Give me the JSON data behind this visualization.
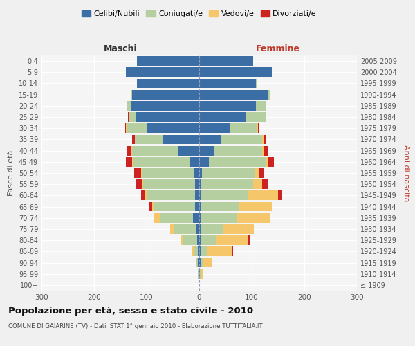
{
  "age_groups": [
    "100+",
    "95-99",
    "90-94",
    "85-89",
    "80-84",
    "75-79",
    "70-74",
    "65-69",
    "60-64",
    "55-59",
    "50-54",
    "45-49",
    "40-44",
    "35-39",
    "30-34",
    "25-29",
    "20-24",
    "15-19",
    "10-14",
    "5-9",
    "0-4"
  ],
  "birth_years": [
    "≤ 1909",
    "1910-1914",
    "1915-1919",
    "1920-1924",
    "1925-1929",
    "1930-1934",
    "1935-1939",
    "1940-1944",
    "1945-1949",
    "1950-1954",
    "1955-1959",
    "1960-1964",
    "1965-1969",
    "1970-1974",
    "1975-1979",
    "1980-1984",
    "1985-1989",
    "1990-1994",
    "1995-1999",
    "2000-2004",
    "2005-2009"
  ],
  "maschi": {
    "celibi": [
      0,
      1,
      2,
      3,
      4,
      6,
      12,
      8,
      8,
      8,
      10,
      18,
      40,
      70,
      100,
      120,
      130,
      128,
      118,
      140,
      118
    ],
    "coniugati": [
      0,
      1,
      3,
      8,
      28,
      42,
      62,
      78,
      92,
      98,
      98,
      108,
      88,
      52,
      38,
      14,
      7,
      2,
      0,
      0,
      0
    ],
    "vedovi": [
      0,
      0,
      1,
      2,
      4,
      7,
      13,
      4,
      2,
      2,
      2,
      2,
      2,
      1,
      1,
      0,
      0,
      0,
      0,
      0,
      0
    ],
    "divorziati": [
      0,
      0,
      0,
      0,
      0,
      0,
      0,
      5,
      8,
      12,
      14,
      12,
      8,
      4,
      2,
      1,
      0,
      0,
      0,
      0,
      0
    ]
  },
  "femmine": {
    "nubili": [
      0,
      1,
      2,
      2,
      3,
      4,
      4,
      4,
      4,
      4,
      5,
      18,
      28,
      42,
      58,
      88,
      108,
      132,
      108,
      138,
      103
    ],
    "coniugate": [
      0,
      1,
      4,
      12,
      28,
      42,
      68,
      72,
      88,
      98,
      102,
      108,
      92,
      78,
      52,
      38,
      18,
      4,
      2,
      0,
      0
    ],
    "vedove": [
      0,
      4,
      18,
      48,
      62,
      58,
      62,
      62,
      58,
      18,
      8,
      6,
      4,
      2,
      2,
      1,
      0,
      0,
      0,
      0,
      0
    ],
    "divorziate": [
      0,
      0,
      0,
      2,
      4,
      0,
      0,
      0,
      7,
      10,
      8,
      10,
      7,
      4,
      2,
      1,
      0,
      0,
      0,
      0,
      0
    ]
  },
  "colors": {
    "celibi": "#3a6ea5",
    "coniugati": "#b5cfa0",
    "vedovi": "#f5c76a",
    "divorziati": "#cc2222"
  },
  "xlim": 300,
  "title": "Popolazione per età, sesso e stato civile - 2010",
  "subtitle": "COMUNE DI GAIARINE (TV) - Dati ISTAT 1° gennaio 2010 - Elaborazione TUTTITALIA.IT",
  "ylabel_left": "Fasce di età",
  "ylabel_right": "Anni di nascita",
  "xlabel_left": "Maschi",
  "xlabel_right": "Femmine",
  "bg_color": "#f5f5f5",
  "grid_color": "#ffffff",
  "bar_height": 0.85
}
